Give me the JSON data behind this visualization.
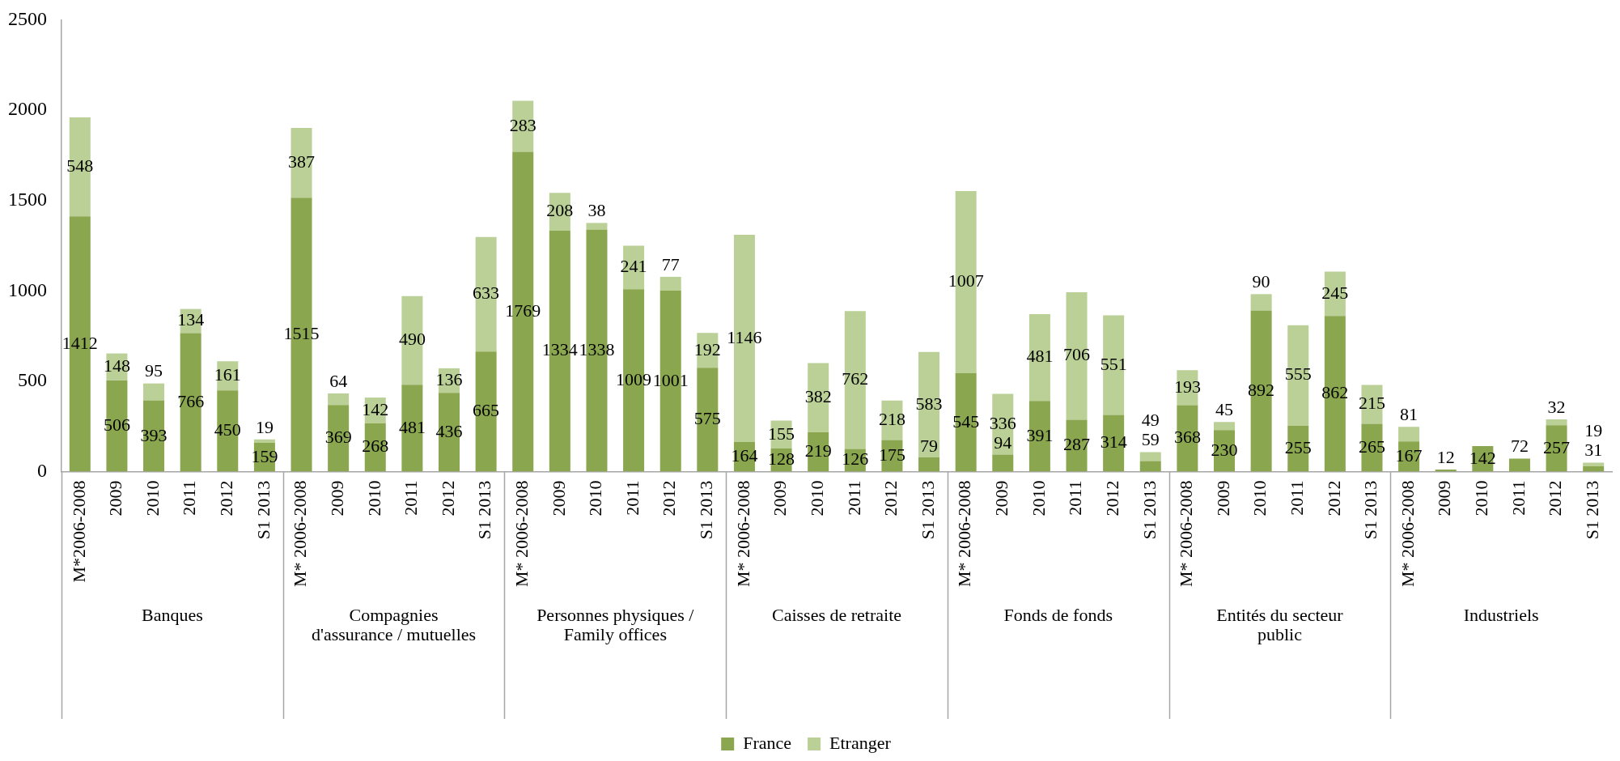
{
  "chart_data": {
    "type": "bar",
    "stacked": true,
    "data_labels": true,
    "grid": false,
    "legend": "bottom",
    "categories": [
      "M*2006-2008",
      "2009",
      "2010",
      "2011",
      "2012",
      "S1 2013",
      "M* 2006-2008",
      "2009",
      "2010",
      "2011",
      "2012",
      "S1 2013",
      "M* 2006-2008",
      "2009",
      "2010",
      "2011",
      "2012",
      "S1 2013",
      "M* 2006-2008",
      "2009",
      "2010",
      "2011",
      "2012",
      "S1 2013",
      "M* 2006-2008",
      "2009",
      "2010",
      "2011",
      "2012",
      "S1 2013",
      "M* 2006-2008",
      "2009",
      "2010",
      "2011",
      "2012",
      "S1 2013",
      "M* 2006-2008",
      "2009",
      "2010",
      "2011",
      "2012",
      "S1 2013"
    ],
    "series": [
      {
        "name": "France",
        "color": "#8aa64e",
        "values": [
          1412,
          506,
          393,
          766,
          450,
          159,
          1515,
          369,
          268,
          481,
          436,
          665,
          1769,
          1334,
          1338,
          1009,
          1001,
          575,
          164,
          128,
          219,
          126,
          175,
          79,
          545,
          94,
          391,
          287,
          314,
          59,
          368,
          230,
          892,
          255,
          862,
          265,
          167,
          12,
          142,
          72,
          257,
          31
        ]
      },
      {
        "name": "Etranger",
        "color": "#bad096",
        "values": [
          548,
          148,
          95,
          134,
          161,
          19,
          387,
          64,
          142,
          490,
          136,
          633,
          283,
          208,
          38,
          241,
          77,
          192,
          1146,
          155,
          382,
          762,
          218,
          583,
          1007,
          336,
          481,
          706,
          551,
          49,
          193,
          45,
          90,
          555,
          245,
          215,
          81,
          null,
          null,
          null,
          32,
          19
        ]
      }
    ],
    "ylim": [
      0,
      2500
    ],
    "yticks": [
      0,
      500,
      1000,
      1500,
      2000,
      2500
    ],
    "annotations": [
      "Banques",
      "Compagnies d'assurance / mutuelles",
      "Personnes physiques / Family offices",
      "Caisses de retraite",
      "Fonds de fonds",
      "Entités du secteur public",
      "Industriels"
    ]
  }
}
